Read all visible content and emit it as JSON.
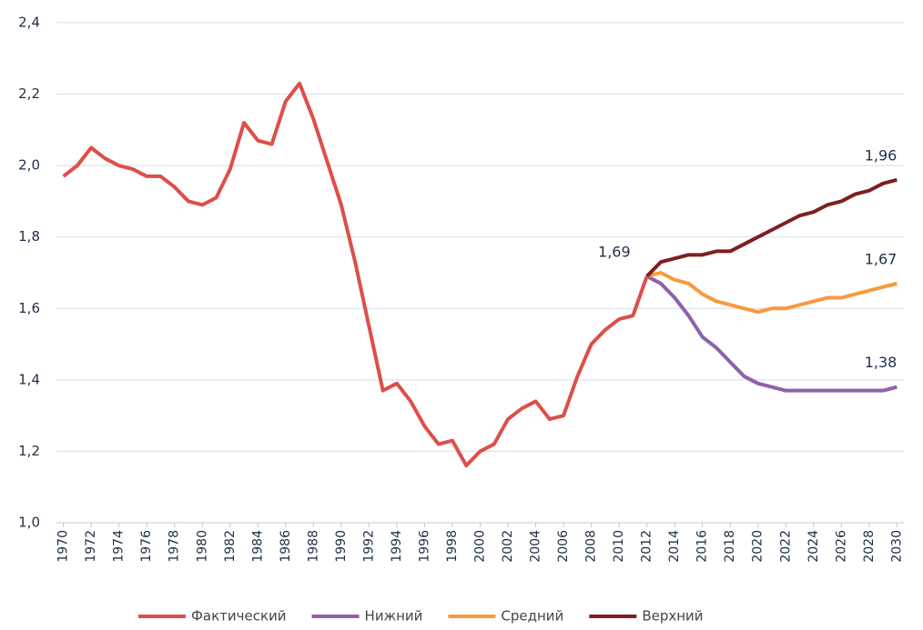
{
  "chart_data": {
    "type": "line",
    "x": [
      1970,
      1971,
      1972,
      1973,
      1974,
      1975,
      1976,
      1977,
      1978,
      1979,
      1980,
      1981,
      1982,
      1983,
      1984,
      1985,
      1986,
      1987,
      1988,
      1989,
      1990,
      1991,
      1992,
      1993,
      1994,
      1995,
      1996,
      1997,
      1998,
      1999,
      2000,
      2001,
      2002,
      2003,
      2004,
      2005,
      2006,
      2007,
      2008,
      2009,
      2010,
      2011,
      2012,
      2013,
      2014,
      2015,
      2016,
      2017,
      2018,
      2019,
      2020,
      2021,
      2022,
      2023,
      2024,
      2025,
      2026,
      2027,
      2028,
      2029,
      2030
    ],
    "series": [
      {
        "name": "Фактический",
        "color": "#dc4f4a",
        "values": [
          1.97,
          2.0,
          2.05,
          2.02,
          2.0,
          1.99,
          1.97,
          1.97,
          1.94,
          1.9,
          1.89,
          1.91,
          1.99,
          2.12,
          2.07,
          2.06,
          2.18,
          2.23,
          2.13,
          2.01,
          1.89,
          1.73,
          1.55,
          1.37,
          1.39,
          1.34,
          1.27,
          1.22,
          1.23,
          1.16,
          1.2,
          1.22,
          1.29,
          1.32,
          1.34,
          1.29,
          1.3,
          1.41,
          1.5,
          1.54,
          1.57,
          1.58,
          1.69,
          null,
          null,
          null,
          null,
          null,
          null,
          null,
          null,
          null,
          null,
          null,
          null,
          null,
          null,
          null,
          null,
          null,
          null
        ],
        "value_labels": [
          null,
          null,
          null,
          null,
          null,
          null,
          null,
          null,
          null,
          null,
          null,
          null,
          null,
          null,
          null,
          null,
          null,
          null,
          null,
          null,
          null,
          null,
          null,
          null,
          null,
          null,
          null,
          null,
          null,
          null,
          null,
          null,
          null,
          null,
          null,
          null,
          null,
          null,
          null,
          null,
          null,
          null,
          "1,69",
          null,
          null,
          null,
          null,
          null,
          null,
          null,
          null,
          null,
          null,
          null,
          null,
          null,
          null,
          null,
          null,
          null,
          null
        ]
      },
      {
        "name": "Нижний",
        "color": "#8d62a9",
        "values": [
          null,
          null,
          null,
          null,
          null,
          null,
          null,
          null,
          null,
          null,
          null,
          null,
          null,
          null,
          null,
          null,
          null,
          null,
          null,
          null,
          null,
          null,
          null,
          null,
          null,
          null,
          null,
          null,
          null,
          null,
          null,
          null,
          null,
          null,
          null,
          null,
          null,
          null,
          null,
          null,
          null,
          null,
          1.69,
          1.67,
          1.63,
          1.58,
          1.52,
          1.49,
          1.45,
          1.41,
          1.39,
          1.38,
          1.37,
          1.37,
          1.37,
          1.37,
          1.37,
          1.37,
          1.37,
          1.37,
          1.38
        ],
        "value_labels": [
          null,
          null,
          null,
          null,
          null,
          null,
          null,
          null,
          null,
          null,
          null,
          null,
          null,
          null,
          null,
          null,
          null,
          null,
          null,
          null,
          null,
          null,
          null,
          null,
          null,
          null,
          null,
          null,
          null,
          null,
          null,
          null,
          null,
          null,
          null,
          null,
          null,
          null,
          null,
          null,
          null,
          null,
          null,
          null,
          null,
          null,
          null,
          null,
          null,
          null,
          null,
          null,
          null,
          null,
          null,
          null,
          null,
          null,
          null,
          null,
          "1,38"
        ]
      },
      {
        "name": "Средний",
        "color": "#f79a3c",
        "values": [
          null,
          null,
          null,
          null,
          null,
          null,
          null,
          null,
          null,
          null,
          null,
          null,
          null,
          null,
          null,
          null,
          null,
          null,
          null,
          null,
          null,
          null,
          null,
          null,
          null,
          null,
          null,
          null,
          null,
          null,
          null,
          null,
          null,
          null,
          null,
          null,
          null,
          null,
          null,
          null,
          null,
          null,
          1.69,
          1.7,
          1.68,
          1.67,
          1.64,
          1.62,
          1.61,
          1.6,
          1.59,
          1.6,
          1.6,
          1.61,
          1.62,
          1.63,
          1.63,
          1.64,
          1.65,
          1.66,
          1.67
        ],
        "value_labels": [
          null,
          null,
          null,
          null,
          null,
          null,
          null,
          null,
          null,
          null,
          null,
          null,
          null,
          null,
          null,
          null,
          null,
          null,
          null,
          null,
          null,
          null,
          null,
          null,
          null,
          null,
          null,
          null,
          null,
          null,
          null,
          null,
          null,
          null,
          null,
          null,
          null,
          null,
          null,
          null,
          null,
          null,
          null,
          null,
          null,
          null,
          null,
          null,
          null,
          null,
          null,
          null,
          null,
          null,
          null,
          null,
          null,
          null,
          null,
          null,
          "1,67"
        ]
      },
      {
        "name": "Верхний",
        "color": "#7d1f21",
        "values": [
          null,
          null,
          null,
          null,
          null,
          null,
          null,
          null,
          null,
          null,
          null,
          null,
          null,
          null,
          null,
          null,
          null,
          null,
          null,
          null,
          null,
          null,
          null,
          null,
          null,
          null,
          null,
          null,
          null,
          null,
          null,
          null,
          null,
          null,
          null,
          null,
          null,
          null,
          null,
          null,
          null,
          null,
          1.69,
          1.73,
          1.74,
          1.75,
          1.75,
          1.76,
          1.76,
          1.78,
          1.8,
          1.82,
          1.84,
          1.86,
          1.87,
          1.89,
          1.9,
          1.92,
          1.93,
          1.95,
          1.96
        ],
        "value_labels": [
          null,
          null,
          null,
          null,
          null,
          null,
          null,
          null,
          null,
          null,
          null,
          null,
          null,
          null,
          null,
          null,
          null,
          null,
          null,
          null,
          null,
          null,
          null,
          null,
          null,
          null,
          null,
          null,
          null,
          null,
          null,
          null,
          null,
          null,
          null,
          null,
          null,
          null,
          null,
          null,
          null,
          null,
          null,
          null,
          null,
          null,
          null,
          null,
          null,
          null,
          null,
          null,
          null,
          null,
          null,
          null,
          null,
          null,
          null,
          null,
          "1,96"
        ]
      }
    ],
    "xlim": [
      1969.5,
      2030.5
    ],
    "xticks": [
      1970,
      1972,
      1974,
      1976,
      1978,
      1980,
      1982,
      1984,
      1986,
      1988,
      1990,
      1992,
      1994,
      1996,
      1998,
      2000,
      2002,
      2004,
      2006,
      2008,
      2010,
      2012,
      2014,
      2016,
      2018,
      2020,
      2022,
      2024,
      2026,
      2028,
      2030
    ],
    "ylim": [
      1.0,
      2.4
    ],
    "yticks": [
      {
        "value": 1.0,
        "label": "1,0"
      },
      {
        "value": 1.2,
        "label": "1,2"
      },
      {
        "value": 1.4,
        "label": "1,4"
      },
      {
        "value": 1.6,
        "label": "1,6"
      },
      {
        "value": 1.8,
        "label": "1,8"
      },
      {
        "value": 2.0,
        "label": "2,0"
      },
      {
        "value": 2.2,
        "label": "2,2"
      },
      {
        "value": 2.4,
        "label": "2,4"
      }
    ],
    "grid": true
  }
}
